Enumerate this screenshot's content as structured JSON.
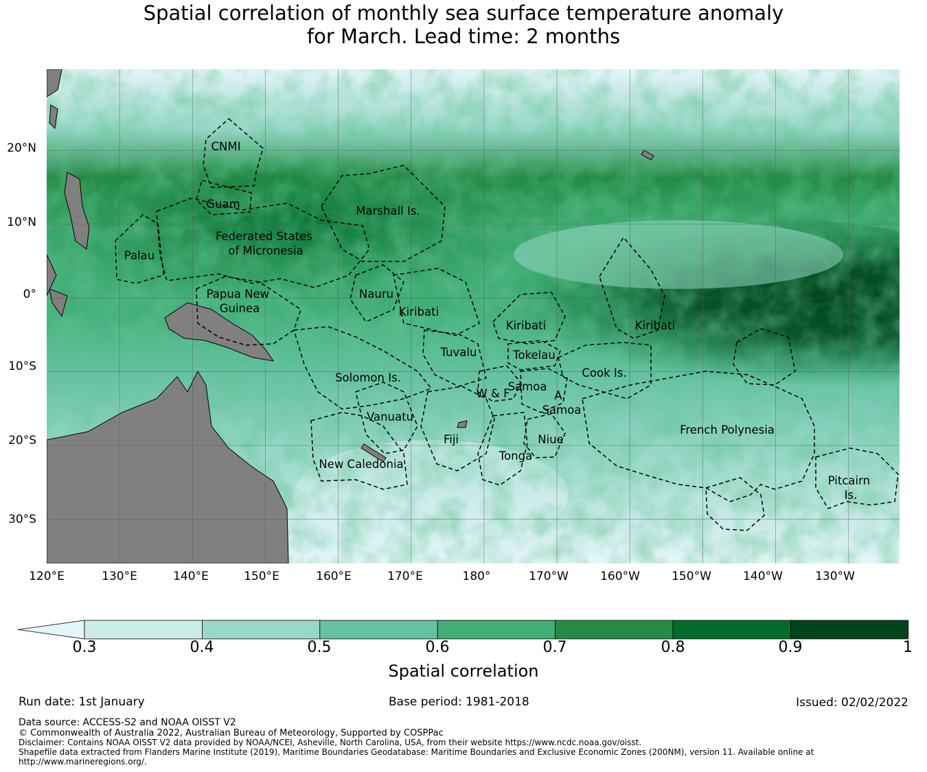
{
  "title": {
    "line1": "Spatial correlation of monthly sea surface temperature anomaly",
    "line2": "for March. Lead time: 2 months"
  },
  "map": {
    "lat_labels": [
      "20°N",
      "10°N",
      "0°",
      "10°S",
      "20°S",
      "30°S"
    ],
    "lon_labels": [
      "120°E",
      "130°E",
      "140°E",
      "150°E",
      "160°E",
      "170°E",
      "180°",
      "170°W",
      "160°W",
      "150°W",
      "140°W",
      "130°W"
    ],
    "extent": {
      "lon_min": 120,
      "lon_max": 237,
      "lat_min": -36,
      "lat_max": 31
    },
    "colors": {
      "land": "#808080",
      "ocean_low": "#e5f5f9",
      "grid": "#555555"
    },
    "regions": [
      {
        "name": "CNMI",
        "lines": [
          "CNMI"
        ]
      },
      {
        "name": "Guam",
        "lines": [
          "Guam"
        ]
      },
      {
        "name": "Marshall Is.",
        "lines": [
          "Marshall Is."
        ]
      },
      {
        "name": "Federated States of Micronesia",
        "lines": [
          "Federated States",
          "of Micronesia"
        ]
      },
      {
        "name": "Palau",
        "lines": [
          "Palau"
        ]
      },
      {
        "name": "Papua New Guinea",
        "lines": [
          "Papua New",
          "Guinea"
        ]
      },
      {
        "name": "Nauru",
        "lines": [
          "Nauru"
        ]
      },
      {
        "name": "Kiribati (Gilbert)",
        "lines": [
          "Kiribati"
        ]
      },
      {
        "name": "Kiribati (Phoenix)",
        "lines": [
          "Kiribati"
        ]
      },
      {
        "name": "Kiribati (Line)",
        "lines": [
          "Kiribati"
        ]
      },
      {
        "name": "Tuvalu",
        "lines": [
          "Tuvalu"
        ]
      },
      {
        "name": "Tokelau",
        "lines": [
          "Tokelau"
        ]
      },
      {
        "name": "Solomon Is.",
        "lines": [
          "Solomon Is."
        ]
      },
      {
        "name": "Cook Is.",
        "lines": [
          "Cook Is."
        ]
      },
      {
        "name": "W & F",
        "lines": [
          "W & F"
        ]
      },
      {
        "name": "Samoa",
        "lines": [
          "Samoa"
        ]
      },
      {
        "name": "A. Samoa",
        "lines": [
          "A.",
          "Samoa"
        ]
      },
      {
        "name": "Vanuatu",
        "lines": [
          "Vanuatu"
        ]
      },
      {
        "name": "Fiji",
        "lines": [
          "Fiji"
        ]
      },
      {
        "name": "Niue",
        "lines": [
          "Niue"
        ]
      },
      {
        "name": "Tonga",
        "lines": [
          "Tonga"
        ]
      },
      {
        "name": "French Polynesia",
        "lines": [
          "French Polynesia"
        ]
      },
      {
        "name": "New Caledonia",
        "lines": [
          "New Caledonia"
        ]
      },
      {
        "name": "Pitcairn Is.",
        "lines": [
          "Pitcairn",
          "Is."
        ]
      }
    ]
  },
  "colorbar": {
    "ticks": [
      "0.3",
      "0.4",
      "0.5",
      "0.6",
      "0.7",
      "0.8",
      "0.9",
      "1"
    ],
    "colors": [
      "#e5f5f9",
      "#ccece6",
      "#99d8c9",
      "#66c2a4",
      "#41ae76",
      "#238b45",
      "#006d2c",
      "#00441b"
    ],
    "label": "Spatial correlation"
  },
  "footer": {
    "run_date": "Run date: 1st January",
    "base_period": "Base period: 1981-2018",
    "issued": "Issued: 02/02/2022",
    "data_source": "Data source: ACCESS-S2 and NOAA OISST V2",
    "copyright": "© Commonwealth of Australia 2022, Australian Bureau of Meteorology, Supported by COSPPac",
    "disclaimer": "Disclaimer: Contains NOAA OISST V2 data provided by NOAA/NCEI, Asheville, North Carolina, USA, from their website https://www.ncdc.noaa.gov/oisst.",
    "shapefile_1": "Shapefile data extracted from Flanders Marine Institute (2019), Maritime Boundaries Geodatabase: Maritime Boundaries and Exclusive Economic Zones (200NM), version 11. Available online at",
    "shapefile_2": "http://www.marineregions.org/."
  }
}
